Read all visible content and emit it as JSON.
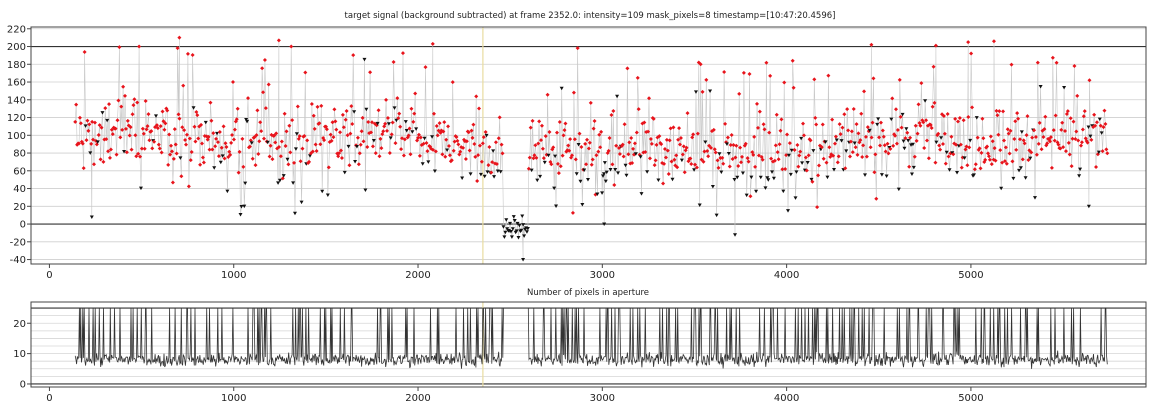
{
  "chart_data": [
    {
      "type": "scatter",
      "title": "target signal (background subtracted) at frame 2352.0: intensity=109 mask_pixels=8 timestamp=[10:47:20.4596]",
      "xlabel": "",
      "ylabel": "",
      "xlim": [
        -100,
        5950
      ],
      "ylim": [
        -45,
        222
      ],
      "x_ticks": [
        0,
        1000,
        2000,
        3000,
        4000,
        5000
      ],
      "y_ticks": [
        -40,
        -20,
        0,
        20,
        40,
        60,
        80,
        100,
        120,
        140,
        160,
        180,
        200,
        220
      ],
      "grid": "horizontal",
      "bold_gridlines_at": [
        0,
        200
      ],
      "current_frame_marker": 2352,
      "x_range": [
        140,
        5740
      ],
      "gap": {
        "from": 2460,
        "to": 2600,
        "min": -40,
        "max": 30
      },
      "series": [
        {
          "role": "high-value points (red)",
          "color": "#e8141c",
          "typical_range": [
            50,
            200
          ]
        },
        {
          "role": "low-value points (black)",
          "color": "#111111",
          "typical_range": [
            10,
            100
          ]
        },
        {
          "role": "connecting line",
          "color": "#c8c8c8"
        }
      ],
      "peaks": [
        {
          "x": 705,
          "y": 210
        },
        {
          "x": 1245,
          "y": 207
        },
        {
          "x": 2080,
          "y": 203
        },
        {
          "x": 4460,
          "y": 202
        },
        {
          "x": 4810,
          "y": 201
        },
        {
          "x": 4985,
          "y": 205
        },
        {
          "x": 5125,
          "y": 206
        }
      ],
      "dips": [
        {
          "x": 230,
          "y": 8
        },
        {
          "x": 2570,
          "y": -40
        },
        {
          "x": 3010,
          "y": 0
        },
        {
          "x": 3720,
          "y": -12
        },
        {
          "x": 5640,
          "y": 20
        }
      ]
    },
    {
      "type": "line",
      "title": "Number of pixels in aperture",
      "xlabel": "",
      "ylabel": "",
      "xlim": [
        -100,
        5950
      ],
      "ylim": [
        -1,
        27
      ],
      "x_ticks": [
        0,
        1000,
        2000,
        3000,
        4000,
        5000
      ],
      "y_ticks": [
        0,
        10,
        20
      ],
      "grid": "horizontal",
      "bold_gridlines_at": [
        0,
        25
      ],
      "current_frame_marker": 2352,
      "x_range": [
        140,
        5740
      ],
      "max_value": 25,
      "typical_range": [
        4,
        12
      ],
      "plateau": {
        "from": 2460,
        "to": 2600,
        "value": 25
      },
      "line_color": "#333333"
    }
  ]
}
